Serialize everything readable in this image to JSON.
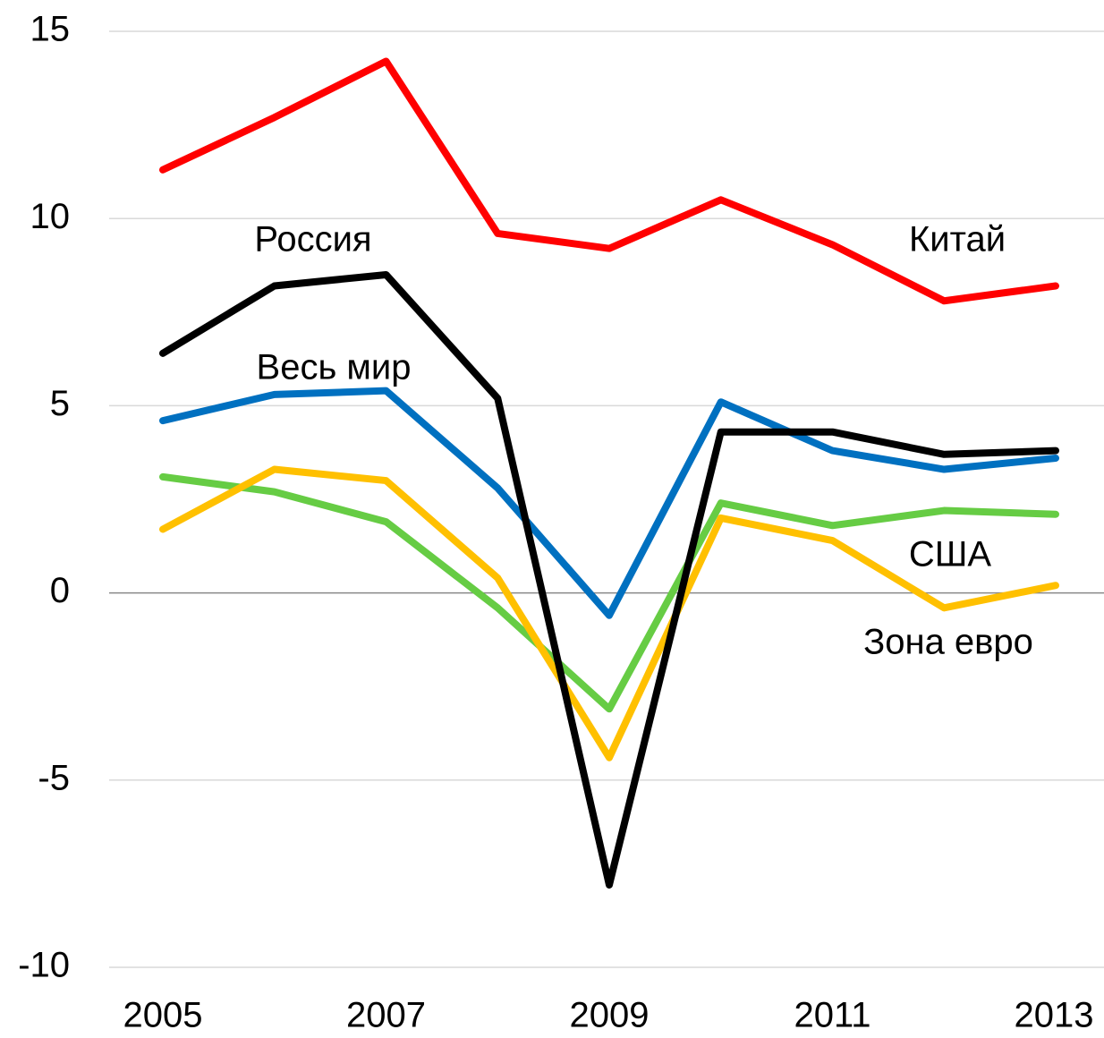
{
  "chart_data": {
    "type": "line",
    "x": [
      2005,
      2006,
      2007,
      2008,
      2009,
      2010,
      2011,
      2012,
      2013
    ],
    "xlim": [
      2005,
      2013
    ],
    "xticks": [
      2005,
      2007,
      2009,
      2011,
      2013
    ],
    "ylim": [
      -10,
      15
    ],
    "yticks": [
      -10,
      -5,
      0,
      5,
      10,
      15
    ],
    "grid": true,
    "series": [
      {
        "name": "Китай",
        "color": "#ff0000",
        "values": [
          11.3,
          12.7,
          14.2,
          9.6,
          9.2,
          10.5,
          9.3,
          7.8,
          8.2
        ]
      },
      {
        "name": "Весь мир",
        "color": "#0070c0",
        "values": [
          4.6,
          5.3,
          5.4,
          2.8,
          -0.6,
          5.1,
          3.8,
          3.3,
          3.6
        ]
      },
      {
        "name": "США",
        "color": "#66cc44",
        "values": [
          3.1,
          2.7,
          1.9,
          -0.4,
          -3.1,
          2.4,
          1.8,
          2.2,
          2.1
        ]
      },
      {
        "name": "Зона евро",
        "color": "#ffc000",
        "values": [
          1.7,
          3.3,
          3.0,
          0.4,
          -4.4,
          2.0,
          1.4,
          -0.4,
          0.2
        ]
      },
      {
        "name": "Россия",
        "color": "#000000",
        "values": [
          6.4,
          8.2,
          8.5,
          5.2,
          -7.8,
          4.3,
          4.3,
          3.7,
          3.8
        ]
      }
    ]
  }
}
